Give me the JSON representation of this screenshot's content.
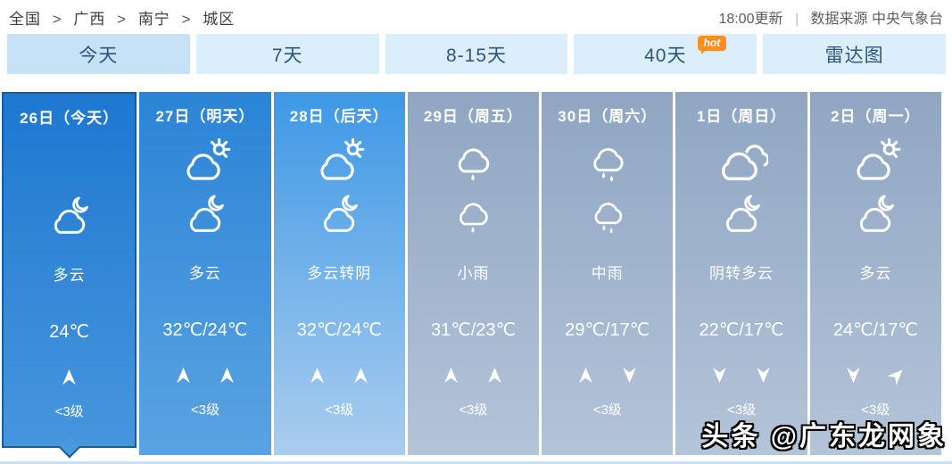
{
  "breadcrumb": {
    "items": [
      "全国",
      "广西",
      "南宁",
      "城区"
    ],
    "separator": ">"
  },
  "update_info": {
    "time": "18:00更新",
    "divider": "|",
    "source": "数据来源 中央气象台"
  },
  "tabs": [
    {
      "label": "今天",
      "active": true
    },
    {
      "label": "7天",
      "active": false
    },
    {
      "label": "8-15天",
      "active": false
    },
    {
      "label": "40天",
      "active": false,
      "badge": "hot"
    },
    {
      "label": "雷达图",
      "active": false
    }
  ],
  "days": [
    {
      "date": "26日（今天）",
      "day_icon": null,
      "night_icon": "cloud-moon",
      "condition": "多云",
      "temp": "24℃",
      "winds": [
        "up"
      ],
      "wind_level": "<3级",
      "selected": true
    },
    {
      "date": "27日（明天）",
      "day_icon": "cloud-sun",
      "night_icon": "cloud-moon",
      "condition": "多云",
      "temp": "32℃/24℃",
      "winds": [
        "up",
        "up"
      ],
      "wind_level": "<3级",
      "selected": false
    },
    {
      "date": "28日（后天）",
      "day_icon": "cloud-sun",
      "night_icon": "cloud-moon",
      "condition": "多云转阴",
      "temp": "32℃/24℃",
      "winds": [
        "up",
        "up"
      ],
      "wind_level": "<3级",
      "selected": false
    },
    {
      "date": "29日（周五）",
      "day_icon": "rain-light",
      "night_icon": "rain-light",
      "condition": "小雨",
      "temp": "31℃/23℃",
      "winds": [
        "up",
        "up"
      ],
      "wind_level": "<3级",
      "selected": false
    },
    {
      "date": "30日（周六）",
      "day_icon": "rain-mid",
      "night_icon": "rain-mid",
      "condition": "中雨",
      "temp": "29℃/17℃",
      "winds": [
        "up",
        "down"
      ],
      "wind_level": "<3级",
      "selected": false
    },
    {
      "date": "1日（周日）",
      "day_icon": "overcast",
      "night_icon": "cloud-moon",
      "condition": "阴转多云",
      "temp": "22℃/17℃",
      "winds": [
        "down",
        "down"
      ],
      "wind_level": "<3级",
      "selected": false
    },
    {
      "date": "2日（周一）",
      "day_icon": "cloud-sun",
      "night_icon": "cloud-moon",
      "condition": "多云",
      "temp": "24℃/17℃",
      "winds": [
        "down",
        "ne"
      ],
      "wind_level": "<3级",
      "selected": false
    }
  ],
  "watermark": {
    "text": "头条 @广东龙网象"
  },
  "colors": {
    "selected_day_border": "#1d5c99",
    "selected_day_top": "#1e78d0",
    "selected_day_bottom": "#4796dd",
    "day2_top": "#2b84d6",
    "day3_top": "#3e98e6",
    "gray_day_top": "#8fa6c2",
    "gray_day_bottom": "#b4c4d9",
    "tab_bg": "#daeefb",
    "tab_active_bg": "#c7e2f6",
    "tab_text": "#2d567e",
    "hot_badge": "#ff8e1f"
  }
}
